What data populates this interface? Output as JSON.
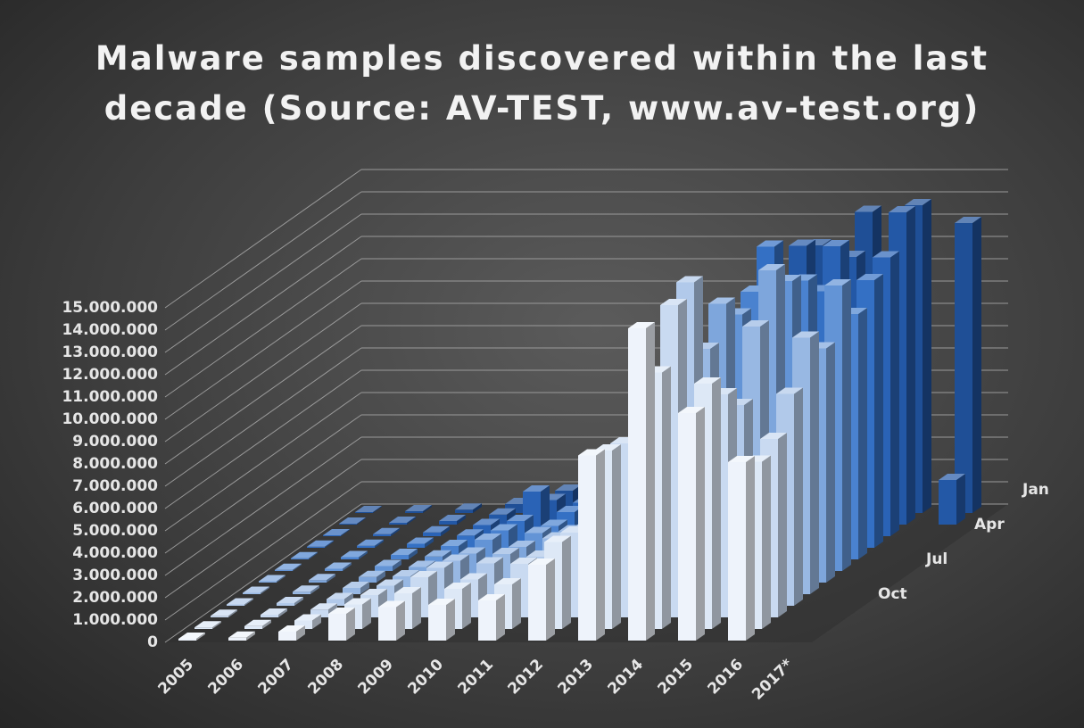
{
  "chart_data": {
    "type": "bar3d",
    "title": "Malware samples discovered within the last decade (Source: AV-TEST, www.av-test.org)",
    "categories": [
      "2005",
      "2006",
      "2007",
      "2008",
      "2009",
      "2010",
      "2011",
      "2012",
      "2013",
      "2014",
      "2015",
      "2016",
      "2017*"
    ],
    "depth_categories": [
      "Jan",
      null,
      null,
      "Apr",
      null,
      null,
      "Jul",
      null,
      null,
      "Oct",
      null,
      null
    ],
    "ylim": [
      0,
      15000000
    ],
    "yticks": [
      0,
      {
        "value": 1000000,
        "label": "1.000.000"
      },
      {
        "value": 2000000,
        "label": "2.000.000"
      },
      {
        "value": 3000000,
        "label": "3.000.000"
      },
      {
        "value": 4000000,
        "label": "4.000.000"
      },
      {
        "value": 5000000,
        "label": "5.000.000"
      },
      {
        "value": 6000000,
        "label": "6.000.000"
      },
      {
        "value": 7000000,
        "label": "7.000.000"
      },
      {
        "value": 8000000,
        "label": "8.000.000"
      },
      {
        "value": 9000000,
        "label": "9.000.000"
      },
      {
        "value": 10000000,
        "label": "10.000.000"
      },
      {
        "value": 11000000,
        "label": "11.000.000"
      },
      {
        "value": 12000000,
        "label": "12.000.000"
      },
      {
        "value": 13000000,
        "label": "13.000.000"
      },
      {
        "value": 14000000,
        "label": "14.000.000"
      },
      {
        "value": 15000000,
        "label": "15.000.000"
      }
    ],
    "grid": true,
    "series": [
      {
        "color": "#1f4f96",
        "values": [
          40000,
          80000,
          150000,
          400000,
          1000000,
          1500000,
          1800000,
          2500000,
          4000000,
          12000000,
          13500000,
          13800000,
          13000000
        ]
      },
      {
        "color": "#2358a6",
        "values": [
          40000,
          80000,
          160000,
          450000,
          1100000,
          1400000,
          1700000,
          2600000,
          4500000,
          12500000,
          12000000,
          14000000,
          2000000
        ]
      },
      {
        "color": "#2a63b6",
        "values": [
          40000,
          90000,
          170000,
          500000,
          2000000,
          1500000,
          1900000,
          2400000,
          4200000,
          11000000,
          13000000,
          12500000,
          null
        ]
      },
      {
        "color": "#3470c4",
        "values": [
          50000,
          90000,
          180000,
          550000,
          1200000,
          1600000,
          2000000,
          2800000,
          4600000,
          13500000,
          11500000,
          12000000,
          null
        ]
      },
      {
        "color": "#4a82cf",
        "values": [
          50000,
          100000,
          200000,
          600000,
          1300000,
          1500000,
          2100000,
          3000000,
          5000000,
          12000000,
          12500000,
          11000000,
          null
        ]
      },
      {
        "color": "#6394d6",
        "values": [
          50000,
          100000,
          220000,
          650000,
          1400000,
          1700000,
          1900000,
          3200000,
          5500000,
          11500000,
          13000000,
          12800000,
          null
        ]
      },
      {
        "color": "#7ea6dc",
        "values": [
          60000,
          110000,
          250000,
          700000,
          1300000,
          1600000,
          2300000,
          3100000,
          6000000,
          12500000,
          14000000,
          10500000,
          null
        ]
      },
      {
        "color": "#98b8e3",
        "values": [
          60000,
          110000,
          280000,
          800000,
          1500000,
          1800000,
          2500000,
          3400000,
          6500000,
          11000000,
          12000000,
          11500000,
          null
        ]
      },
      {
        "color": "#b1c9ea",
        "values": [
          60000,
          120000,
          300000,
          900000,
          1700000,
          1900000,
          2200000,
          3600000,
          7000000,
          14500000,
          9000000,
          9500000,
          null
        ]
      },
      {
        "color": "#c9daf1",
        "values": [
          70000,
          120000,
          350000,
          1000000,
          1800000,
          1700000,
          2400000,
          3800000,
          7800000,
          14000000,
          10000000,
          8000000,
          null
        ]
      },
      {
        "color": "#dde8f6",
        "values": [
          70000,
          130000,
          380000,
          1100000,
          1600000,
          1800000,
          2000000,
          3900000,
          8000000,
          11500000,
          11000000,
          7500000,
          null
        ]
      },
      {
        "color": "#eef3fb",
        "values": [
          80000,
          130000,
          400000,
          1200000,
          1500000,
          1600000,
          1800000,
          3400000,
          8300000,
          14000000,
          10200000,
          8000000,
          null
        ]
      }
    ]
  }
}
